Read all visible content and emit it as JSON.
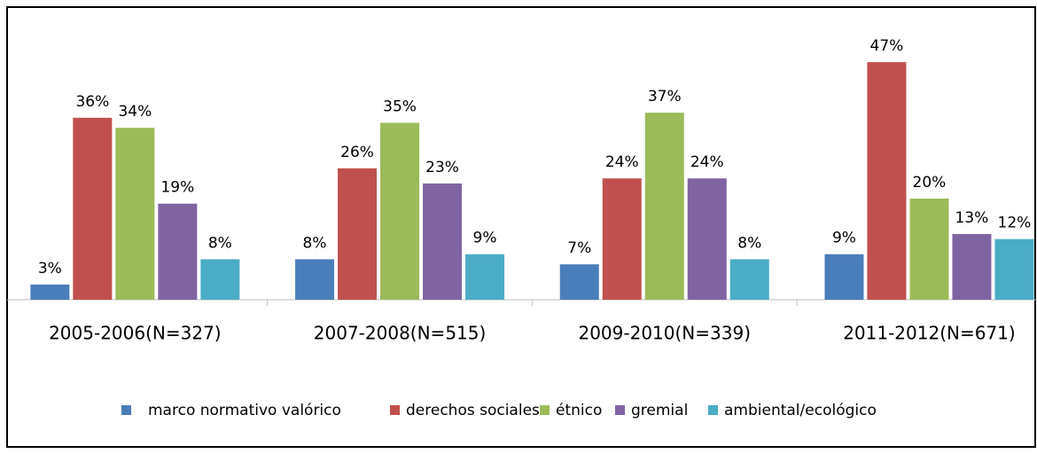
{
  "chart_data": {
    "type": "bar",
    "categories": [
      "2005-2006(N=327)",
      "2007-2008(N=515)",
      "2009-2010(N=339)",
      "2011-2012(N=671)"
    ],
    "series": [
      {
        "name": "marco normativo valórico",
        "color": "#4a7ebb",
        "values": [
          3,
          8,
          7,
          9
        ],
        "value_labels": [
          "3%",
          "8%",
          "7%",
          "9%"
        ]
      },
      {
        "name": "derechos sociales",
        "color": "#c0504d",
        "values": [
          36,
          26,
          24,
          47
        ],
        "value_labels": [
          "36%",
          "26%",
          "24%",
          "47%"
        ]
      },
      {
        "name": "étnico",
        "color": "#9bbb59",
        "values": [
          34,
          35,
          37,
          20
        ],
        "value_labels": [
          "34%",
          "35%",
          "37%",
          "20%"
        ]
      },
      {
        "name": "gremial",
        "color": "#8064a2",
        "values": [
          19,
          23,
          24,
          13
        ],
        "value_labels": [
          "19%",
          "23%",
          "24%",
          "13%"
        ]
      },
      {
        "name": "ambiental/ecológico",
        "color": "#4bacc6",
        "values": [
          8,
          9,
          8,
          12
        ],
        "value_labels": [
          "8%",
          "9%",
          "8%",
          "12%"
        ]
      }
    ]
  }
}
